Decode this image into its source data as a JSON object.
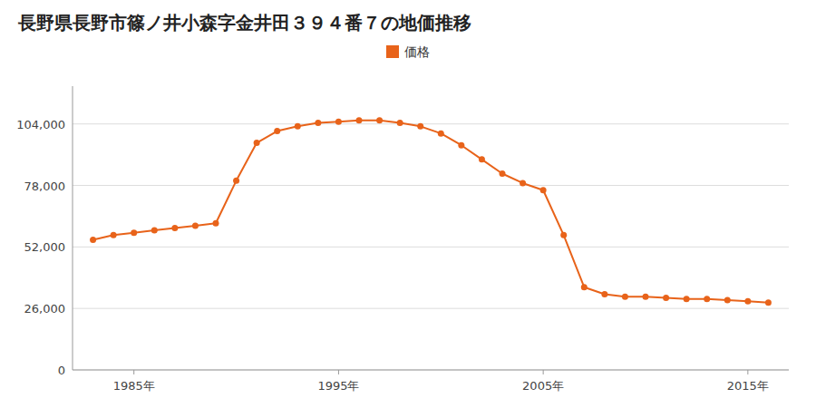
{
  "chart_data": {
    "type": "line",
    "title": "長野県長野市篠ノ井小森字金井田３９４番７の地価推移",
    "x": [
      1983,
      1984,
      1985,
      1986,
      1987,
      1988,
      1989,
      1990,
      1991,
      1992,
      1993,
      1994,
      1995,
      1996,
      1997,
      1998,
      1999,
      2000,
      2001,
      2002,
      2003,
      2004,
      2005,
      2006,
      2007,
      2008,
      2009,
      2010,
      2011,
      2012,
      2013,
      2014,
      2015,
      2016
    ],
    "series": [
      {
        "name": "価格",
        "color": "#e8631a",
        "marker": "circle",
        "line_style": "solid",
        "values": [
          55000,
          57000,
          58000,
          59000,
          60000,
          61000,
          62000,
          80000,
          96000,
          101000,
          103000,
          104500,
          105000,
          105500,
          105500,
          104500,
          103000,
          100000,
          95000,
          89000,
          83000,
          79000,
          76000,
          57000,
          35000,
          32000,
          31000,
          31000,
          30500,
          30000,
          30000,
          29500,
          29000,
          28500
        ]
      }
    ],
    "xlim": [
      1982,
      2017
    ],
    "xticks": [
      {
        "value": 1985,
        "label": "1985年"
      },
      {
        "value": 1995,
        "label": "1995年"
      },
      {
        "value": 2005,
        "label": "2005年"
      },
      {
        "value": 2015,
        "label": "2015年"
      }
    ],
    "ylim": [
      0,
      120000
    ],
    "yticks": [
      0,
      {
        "value": 26000,
        "label": "26,000"
      },
      {
        "value": 52000,
        "label": "52,000"
      },
      {
        "value": 78000,
        "label": "78,000"
      },
      {
        "value": 104000,
        "label": "104,000"
      }
    ],
    "grid": true,
    "legend": "top"
  }
}
